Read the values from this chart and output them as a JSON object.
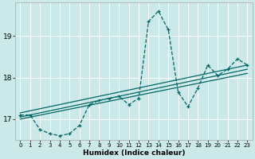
{
  "xlabel": "Humidex (Indice chaleur)",
  "background_color": "#cce9e9",
  "grid_color": "#ffffff",
  "line_color": "#006666",
  "xlim": [
    -0.5,
    23.5
  ],
  "ylim": [
    16.5,
    19.8
  ],
  "yticks": [
    17,
    18,
    19
  ],
  "xticks": [
    0,
    1,
    2,
    3,
    4,
    5,
    6,
    7,
    8,
    9,
    10,
    11,
    12,
    13,
    14,
    15,
    16,
    17,
    18,
    19,
    20,
    21,
    22,
    23
  ],
  "series_x": [
    0,
    1,
    2,
    3,
    4,
    5,
    6,
    7,
    8,
    9,
    10,
    11,
    12,
    13,
    14,
    15,
    16,
    17,
    18,
    19,
    20,
    21,
    22,
    23
  ],
  "series_y": [
    17.1,
    17.1,
    16.75,
    16.65,
    16.6,
    16.65,
    16.85,
    17.35,
    17.45,
    17.5,
    17.55,
    17.35,
    17.5,
    19.35,
    19.6,
    19.15,
    17.65,
    17.3,
    17.75,
    18.3,
    18.05,
    18.2,
    18.45,
    18.3
  ],
  "trend_lines": [
    [
      17.0,
      18.1
    ],
    [
      17.05,
      18.2
    ],
    [
      17.15,
      18.3
    ]
  ]
}
